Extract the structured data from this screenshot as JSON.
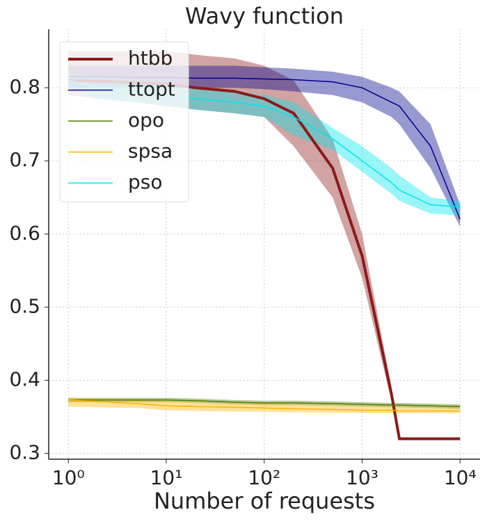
{
  "chart_data": {
    "type": "line",
    "title": "Wavy function",
    "x_label": "Number of requests",
    "log_x": true,
    "grid": true,
    "legend_position": "upper left",
    "xlim": [
      0.63,
      16000
    ],
    "ylim": [
      0.292,
      0.88
    ],
    "xticks": [
      {
        "value": 1,
        "label": "10⁰"
      },
      {
        "value": 10,
        "label": "10¹"
      },
      {
        "value": 100,
        "label": "10²"
      },
      {
        "value": 1000,
        "label": "10³"
      },
      {
        "value": 10000,
        "label": "10⁴"
      }
    ],
    "yticks": [
      0.3,
      0.4,
      0.5,
      0.6,
      0.7,
      0.8
    ],
    "x": [
      1,
      2,
      5,
      10,
      20,
      50,
      100,
      200,
      500,
      1000,
      2000,
      2400,
      5000,
      10000
    ],
    "series": [
      {
        "name": "htbb",
        "color": "#8b1a1a",
        "width": 4,
        "values": [
          0.81,
          0.809,
          0.807,
          0.805,
          0.8,
          0.795,
          0.785,
          0.765,
          0.69,
          0.57,
          0.38,
          0.32,
          0.32,
          0.32
        ],
        "upper": [
          0.85,
          0.85,
          0.85,
          0.85,
          0.845,
          0.84,
          0.83,
          0.81,
          0.73,
          0.6,
          0.39,
          0.32,
          0.32,
          0.32
        ],
        "lower": [
          0.79,
          0.785,
          0.78,
          0.775,
          0.77,
          0.765,
          0.76,
          0.72,
          0.65,
          0.54,
          0.37,
          0.32,
          0.32,
          0.32
        ]
      },
      {
        "name": "ttopt",
        "color": "#00008b",
        "width": 1.5,
        "values": [
          0.815,
          0.815,
          0.814,
          0.814,
          0.813,
          0.813,
          0.812,
          0.811,
          0.808,
          0.8,
          0.78,
          0.775,
          0.72,
          0.62
        ],
        "upper": [
          0.83,
          0.83,
          0.83,
          0.83,
          0.83,
          0.83,
          0.828,
          0.826,
          0.822,
          0.815,
          0.8,
          0.795,
          0.75,
          0.64
        ],
        "lower": [
          0.8,
          0.8,
          0.8,
          0.8,
          0.8,
          0.8,
          0.798,
          0.795,
          0.79,
          0.78,
          0.76,
          0.75,
          0.69,
          0.61
        ]
      },
      {
        "name": "opo",
        "color": "#4f7a00",
        "width": 1.5,
        "values": [
          0.373,
          0.373,
          0.373,
          0.373,
          0.372,
          0.37,
          0.369,
          0.369,
          0.368,
          0.367,
          0.366,
          0.366,
          0.365,
          0.364
        ],
        "upper": [
          0.376,
          0.376,
          0.376,
          0.376,
          0.375,
          0.373,
          0.372,
          0.372,
          0.371,
          0.37,
          0.369,
          0.369,
          0.368,
          0.367
        ],
        "lower": [
          0.37,
          0.37,
          0.37,
          0.37,
          0.369,
          0.367,
          0.366,
          0.366,
          0.365,
          0.364,
          0.363,
          0.363,
          0.362,
          0.361
        ]
      },
      {
        "name": "spsa",
        "color": "#ffb300",
        "width": 1.5,
        "values": [
          0.373,
          0.371,
          0.368,
          0.365,
          0.364,
          0.363,
          0.362,
          0.361,
          0.36,
          0.359,
          0.359,
          0.358,
          0.358,
          0.358
        ],
        "upper": [
          0.376,
          0.375,
          0.374,
          0.372,
          0.37,
          0.369,
          0.368,
          0.367,
          0.366,
          0.365,
          0.364,
          0.364,
          0.363,
          0.363
        ],
        "lower": [
          0.364,
          0.363,
          0.362,
          0.359,
          0.358,
          0.357,
          0.357,
          0.356,
          0.356,
          0.355,
          0.355,
          0.355,
          0.355,
          0.355
        ]
      },
      {
        "name": "pso",
        "color": "#00e5ee",
        "width": 1.5,
        "values": [
          0.81,
          0.8,
          0.795,
          0.79,
          0.785,
          0.78,
          0.775,
          0.76,
          0.73,
          0.7,
          0.67,
          0.66,
          0.64,
          0.637
        ],
        "upper": [
          0.82,
          0.815,
          0.81,
          0.805,
          0.8,
          0.795,
          0.79,
          0.78,
          0.745,
          0.72,
          0.69,
          0.68,
          0.65,
          0.645
        ],
        "lower": [
          0.8,
          0.785,
          0.78,
          0.775,
          0.77,
          0.765,
          0.76,
          0.735,
          0.715,
          0.685,
          0.655,
          0.645,
          0.628,
          0.625
        ]
      }
    ]
  }
}
